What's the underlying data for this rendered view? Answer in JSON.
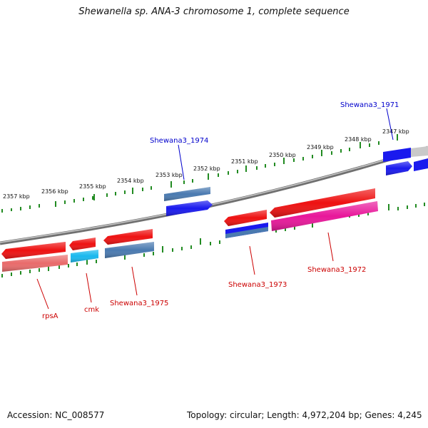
{
  "title": "Shewanella sp. ANA-3 chromosome 1, complete sequence",
  "footer": {
    "accession": "Accession: NC_008577",
    "topology": "Topology: circular; Length: 4,972,204 bp; Genes: 4,245"
  },
  "colors": {
    "backbone": "#888888",
    "tick": "#228B22",
    "forward_label": "#0000cc",
    "reverse_label": "#cc0000",
    "gene_red": "#ee1111",
    "gene_blue": "#1a1aee",
    "gene_steel": "#4a7ab0",
    "gene_cyan": "#19b8ee",
    "gene_magenta": "#e8179a",
    "gene_pink": "#e96b6b"
  },
  "scale_labels": [
    "2357 kbp",
    "2356 kbp",
    "2355 kbp",
    "2354 kbp",
    "2353 kbp",
    "2352 kbp",
    "2351 kbp",
    "2350 kbp",
    "2349 kbp",
    "2348 kbp",
    "2347 kbp"
  ],
  "gene_labels": {
    "g1971": "Shewana3_1971",
    "g1972": "Shewana3_1972",
    "g1973": "Shewana3_1973",
    "g1974": "Shewana3_1974",
    "g1975": "Shewana3_1975",
    "cmk": "cmk",
    "rpsA": "rpsA"
  }
}
